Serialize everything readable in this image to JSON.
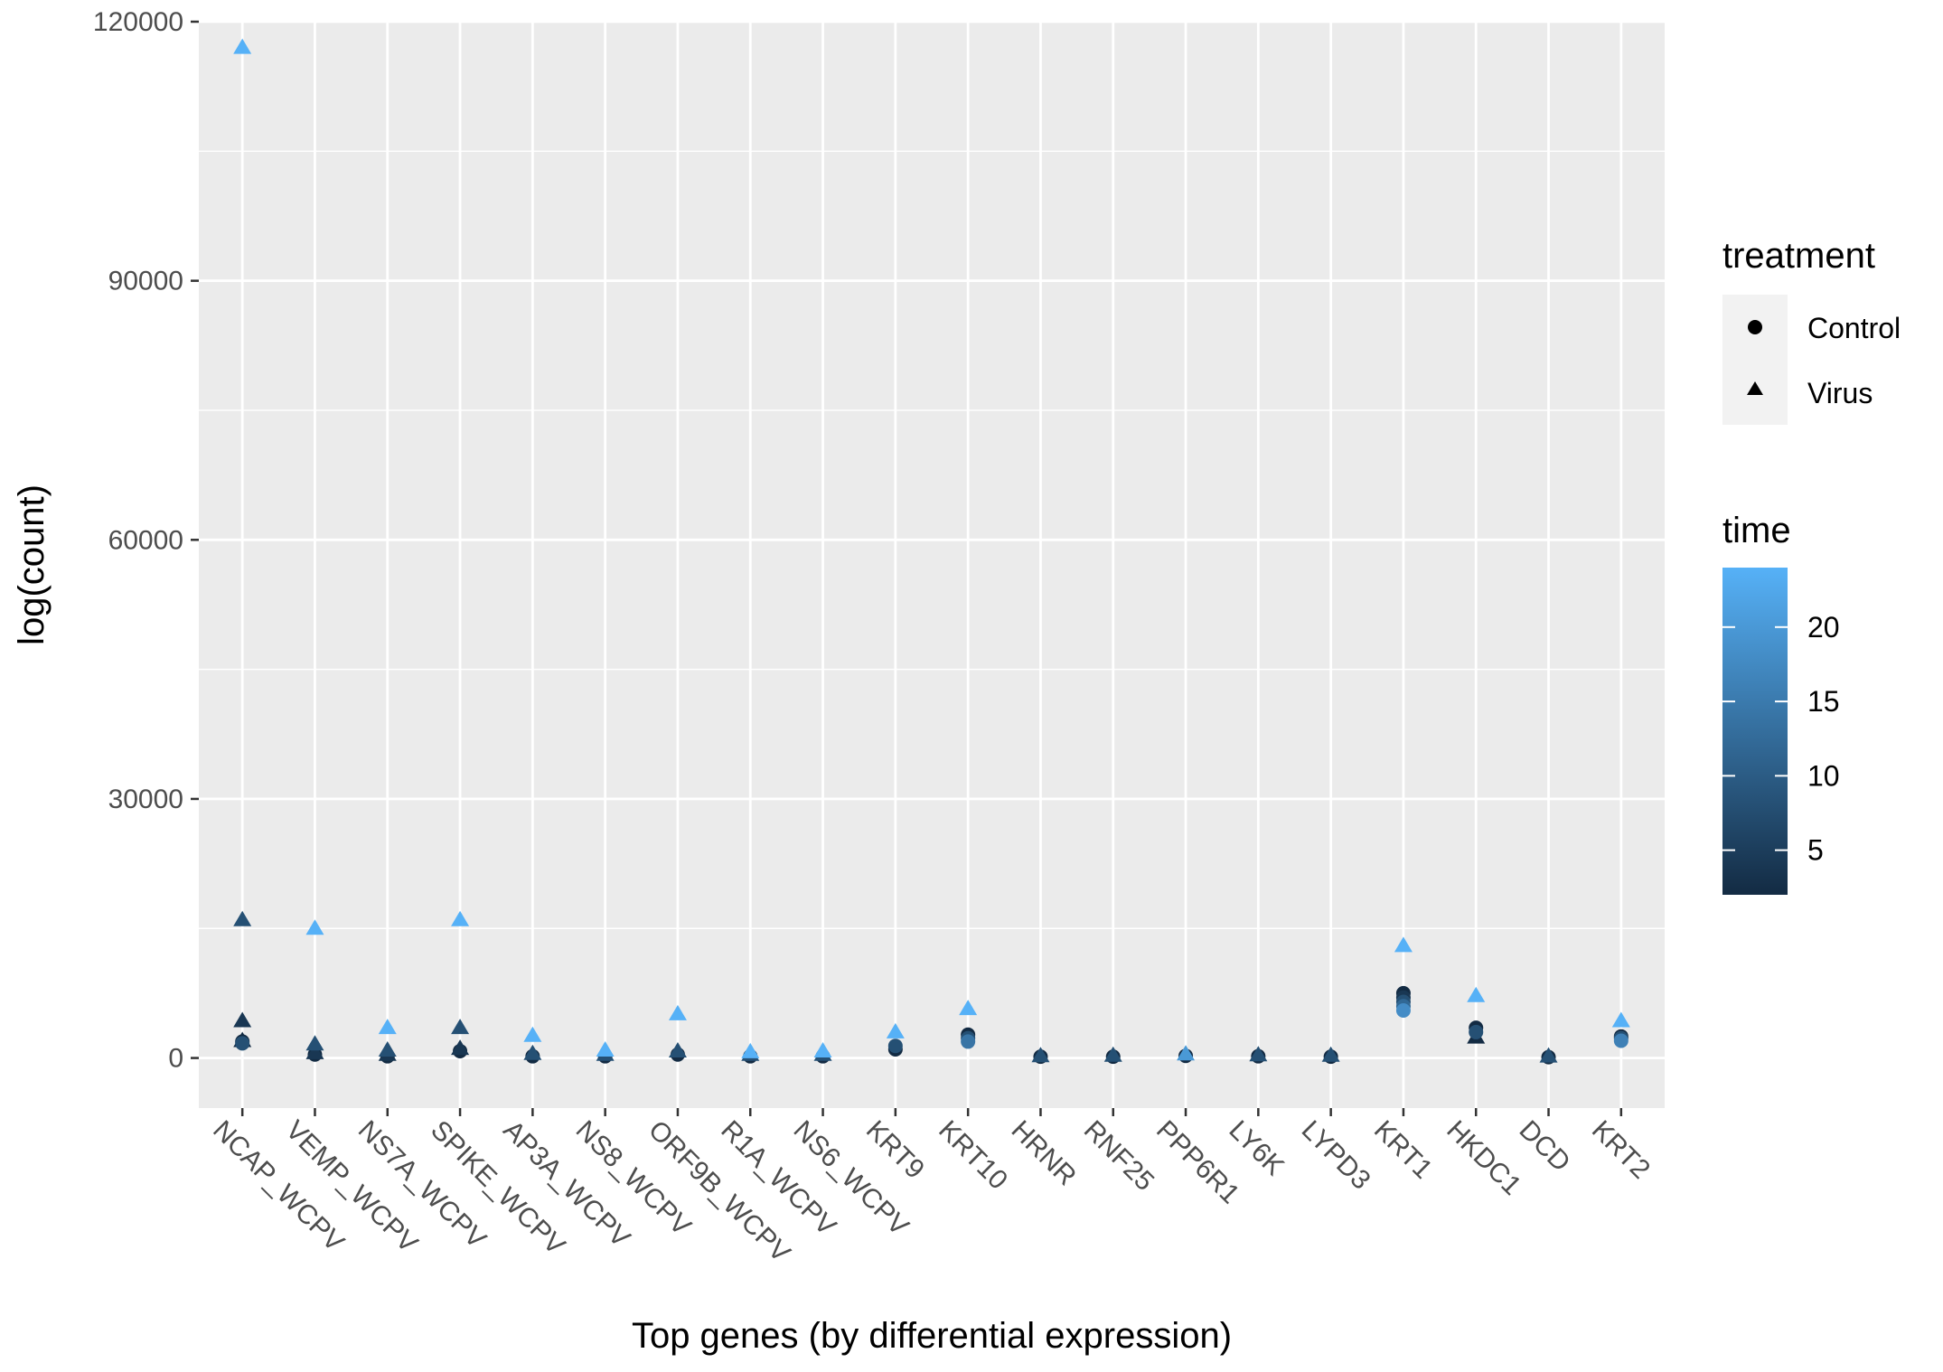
{
  "chart_data": {
    "type": "scatter",
    "xlabel": "Top genes (by differential expression)",
    "ylabel": "log(count)",
    "categories": [
      "NCAP_WCPV",
      "VEMP_WCPV",
      "NS7A_WCPV",
      "SPIKE_WCPV",
      "AP3A_WCPV",
      "NS8_WCPV",
      "ORF9B_WCPV",
      "R1A_WCPV",
      "NS6_WCPV",
      "KRT9",
      "KRT10",
      "HRNR",
      "RNF25",
      "PPP6R1",
      "LY6K",
      "LYPD3",
      "KRT1",
      "HKDC1",
      "DCD",
      "KRT2"
    ],
    "ylim": [
      -5800,
      120000
    ],
    "yticks": [
      0,
      30000,
      60000,
      90000,
      120000
    ],
    "grid": true,
    "legend": {
      "shape": {
        "title": "treatment",
        "entries": [
          {
            "label": "Control",
            "shape": "circle"
          },
          {
            "label": "Virus",
            "shape": "triangle"
          }
        ]
      },
      "color": {
        "title": "time",
        "range": [
          2,
          24
        ],
        "ticks": [
          5,
          10,
          15,
          20
        ],
        "low_color": "#132B43",
        "high_color": "#56B1F7"
      },
      "placement": "right"
    },
    "points": [
      {
        "gene": "NCAP_WCPV",
        "treatment": "Virus",
        "time": 24,
        "value": 117000
      },
      {
        "gene": "NCAP_WCPV",
        "treatment": "Virus",
        "time": 8,
        "value": 16000
      },
      {
        "gene": "NCAP_WCPV",
        "treatment": "Virus",
        "time": 4,
        "value": 4300
      },
      {
        "gene": "NCAP_WCPV",
        "treatment": "Virus",
        "time": 2,
        "value": 2000
      },
      {
        "gene": "NCAP_WCPV",
        "treatment": "Control",
        "time": 2,
        "value": 1900
      },
      {
        "gene": "NCAP_WCPV",
        "treatment": "Control",
        "time": 8,
        "value": 1700
      },
      {
        "gene": "VEMP_WCPV",
        "treatment": "Virus",
        "time": 24,
        "value": 15000
      },
      {
        "gene": "VEMP_WCPV",
        "treatment": "Virus",
        "time": 8,
        "value": 1600
      },
      {
        "gene": "VEMP_WCPV",
        "treatment": "Virus",
        "time": 4,
        "value": 600
      },
      {
        "gene": "VEMP_WCPV",
        "treatment": "Control",
        "time": 2,
        "value": 400
      },
      {
        "gene": "NS7A_WCPV",
        "treatment": "Virus",
        "time": 24,
        "value": 3500
      },
      {
        "gene": "NS7A_WCPV",
        "treatment": "Virus",
        "time": 8,
        "value": 900
      },
      {
        "gene": "NS7A_WCPV",
        "treatment": "Virus",
        "time": 4,
        "value": 400
      },
      {
        "gene": "NS7A_WCPV",
        "treatment": "Control",
        "time": 2,
        "value": 200
      },
      {
        "gene": "SPIKE_WCPV",
        "treatment": "Virus",
        "time": 24,
        "value": 16000
      },
      {
        "gene": "SPIKE_WCPV",
        "treatment": "Virus",
        "time": 8,
        "value": 3500
      },
      {
        "gene": "SPIKE_WCPV",
        "treatment": "Virus",
        "time": 4,
        "value": 1100
      },
      {
        "gene": "SPIKE_WCPV",
        "treatment": "Control",
        "time": 2,
        "value": 800
      },
      {
        "gene": "AP3A_WCPV",
        "treatment": "Virus",
        "time": 24,
        "value": 2600
      },
      {
        "gene": "AP3A_WCPV",
        "treatment": "Virus",
        "time": 8,
        "value": 500
      },
      {
        "gene": "AP3A_WCPV",
        "treatment": "Control",
        "time": 2,
        "value": 200
      },
      {
        "gene": "NS8_WCPV",
        "treatment": "Virus",
        "time": 24,
        "value": 900
      },
      {
        "gene": "NS8_WCPV",
        "treatment": "Virus",
        "time": 8,
        "value": 400
      },
      {
        "gene": "NS8_WCPV",
        "treatment": "Control",
        "time": 2,
        "value": 200
      },
      {
        "gene": "ORF9B_WCPV",
        "treatment": "Virus",
        "time": 24,
        "value": 5100
      },
      {
        "gene": "ORF9B_WCPV",
        "treatment": "Virus",
        "time": 8,
        "value": 800
      },
      {
        "gene": "ORF9B_WCPV",
        "treatment": "Control",
        "time": 2,
        "value": 400
      },
      {
        "gene": "R1A_WCPV",
        "treatment": "Virus",
        "time": 24,
        "value": 700
      },
      {
        "gene": "R1A_WCPV",
        "treatment": "Virus",
        "time": 8,
        "value": 400
      },
      {
        "gene": "R1A_WCPV",
        "treatment": "Control",
        "time": 2,
        "value": 200
      },
      {
        "gene": "NS6_WCPV",
        "treatment": "Virus",
        "time": 24,
        "value": 800
      },
      {
        "gene": "NS6_WCPV",
        "treatment": "Virus",
        "time": 8,
        "value": 400
      },
      {
        "gene": "NS6_WCPV",
        "treatment": "Control",
        "time": 2,
        "value": 200
      },
      {
        "gene": "KRT9",
        "treatment": "Virus",
        "time": 24,
        "value": 3000
      },
      {
        "gene": "KRT9",
        "treatment": "Control",
        "time": 8,
        "value": 1400
      },
      {
        "gene": "KRT9",
        "treatment": "Control",
        "time": 2,
        "value": 1000
      },
      {
        "gene": "KRT10",
        "treatment": "Virus",
        "time": 24,
        "value": 5700
      },
      {
        "gene": "KRT10",
        "treatment": "Control",
        "time": 2,
        "value": 2700
      },
      {
        "gene": "KRT10",
        "treatment": "Control",
        "time": 8,
        "value": 2300
      },
      {
        "gene": "KRT10",
        "treatment": "Control",
        "time": 14,
        "value": 1900
      },
      {
        "gene": "HRNR",
        "treatment": "Virus",
        "time": 8,
        "value": 250
      },
      {
        "gene": "HRNR",
        "treatment": "Control",
        "time": 2,
        "value": 150
      },
      {
        "gene": "RNF25",
        "treatment": "Virus",
        "time": 8,
        "value": 300
      },
      {
        "gene": "RNF25",
        "treatment": "Control",
        "time": 2,
        "value": 150
      },
      {
        "gene": "PPP6R1",
        "treatment": "Virus",
        "time": 20,
        "value": 450
      },
      {
        "gene": "PPP6R1",
        "treatment": "Control",
        "time": 2,
        "value": 250
      },
      {
        "gene": "LY6K",
        "treatment": "Virus",
        "time": 8,
        "value": 350
      },
      {
        "gene": "LY6K",
        "treatment": "Control",
        "time": 2,
        "value": 200
      },
      {
        "gene": "LYPD3",
        "treatment": "Virus",
        "time": 8,
        "value": 300
      },
      {
        "gene": "LYPD3",
        "treatment": "Control",
        "time": 2,
        "value": 150
      },
      {
        "gene": "KRT1",
        "treatment": "Virus",
        "time": 24,
        "value": 13000
      },
      {
        "gene": "KRT1",
        "treatment": "Control",
        "time": 2,
        "value": 7500
      },
      {
        "gene": "KRT1",
        "treatment": "Control",
        "time": 4,
        "value": 7000
      },
      {
        "gene": "KRT1",
        "treatment": "Control",
        "time": 8,
        "value": 6500
      },
      {
        "gene": "KRT1",
        "treatment": "Control",
        "time": 12,
        "value": 6000
      },
      {
        "gene": "KRT1",
        "treatment": "Control",
        "time": 18,
        "value": 5500
      },
      {
        "gene": "HKDC1",
        "treatment": "Virus",
        "time": 24,
        "value": 7200
      },
      {
        "gene": "HKDC1",
        "treatment": "Control",
        "time": 2,
        "value": 3500
      },
      {
        "gene": "HKDC1",
        "treatment": "Control",
        "time": 8,
        "value": 3000
      },
      {
        "gene": "HKDC1",
        "treatment": "Virus",
        "time": 2,
        "value": 2400
      },
      {
        "gene": "DCD",
        "treatment": "Virus",
        "time": 8,
        "value": 200
      },
      {
        "gene": "DCD",
        "treatment": "Control",
        "time": 2,
        "value": 100
      },
      {
        "gene": "KRT2",
        "treatment": "Virus",
        "time": 24,
        "value": 4300
      },
      {
        "gene": "KRT2",
        "treatment": "Control",
        "time": 2,
        "value": 2500
      },
      {
        "gene": "KRT2",
        "treatment": "Control",
        "time": 8,
        "value": 2300
      },
      {
        "gene": "KRT2",
        "treatment": "Control",
        "time": 16,
        "value": 2000
      }
    ]
  }
}
